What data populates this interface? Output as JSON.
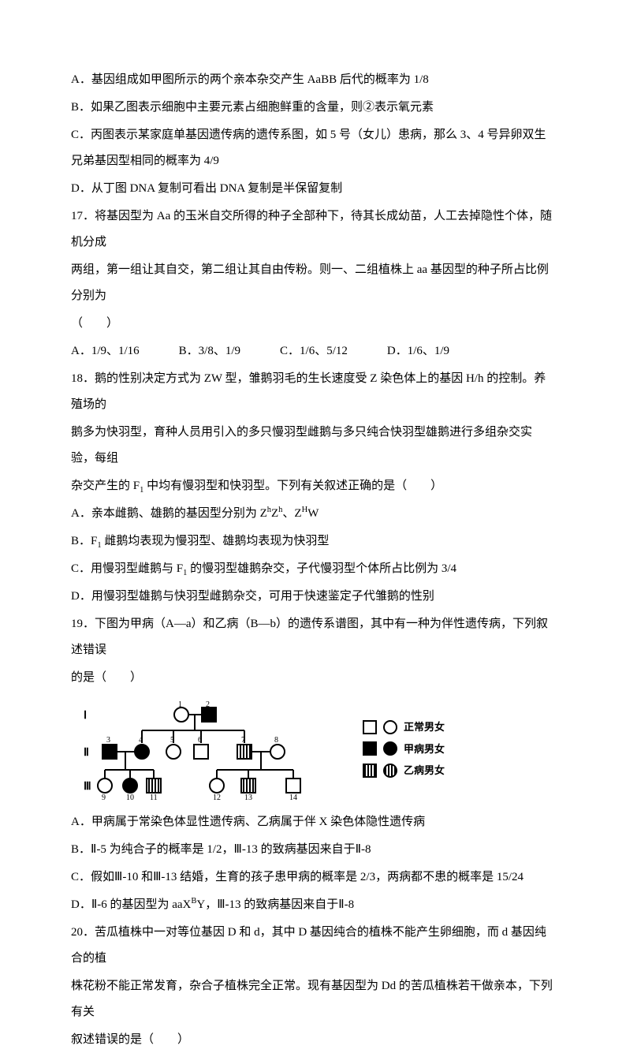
{
  "q16": {
    "opt_a": "A．基因组成如甲图所示的两个亲本杂交产生 AaBB 后代的概率为 1/8",
    "opt_b": "B．如果乙图表示细胞中主要元素占细胞鲜重的含量，则②表示氧元素",
    "opt_c": "C．丙图表示某家庭单基因遗传病的遗传系图，如 5 号（女儿）患病，那么 3、4 号异卵双生兄弟基因型相同的概率为 4/9",
    "opt_d": "D．从丁图 DNA 复制可看出 DNA 复制是半保留复制"
  },
  "q17": {
    "stem1": "17．将基因型为 Aa 的玉米自交所得的种子全部种下，待其长成幼苗，人工去掉隐性个体，随机分成",
    "stem2": "两组，第一组让其自交，第二组让其自由传粉。则一、二组植株上 aa 基因型的种子所占比例分别为",
    "stem3": "（　　）",
    "opt_a": "A．1/9、1/16",
    "opt_b": "B．3/8、1/9",
    "opt_c": "C．1/6、5/12",
    "opt_d": "D．1/6、1/9"
  },
  "q18": {
    "stem1": "18．鹅的性别决定方式为 ZW 型，雏鹅羽毛的生长速度受 Z 染色体上的基因 H/h 的控制。养殖场的",
    "stem2": "鹅多为快羽型，育种人员用引入的多只慢羽型雌鹅与多只纯合快羽型雄鹅进行多组杂交实验，每组",
    "stem3_html": "杂交产生的 F<sub>1</sub> 中均有慢羽型和快羽型。下列有关叙述正确的是（　　）",
    "opt_a_html": "A．亲本雌鹅、雄鹅的基因型分别为 Z<sup>h</sup>Z<sup>h</sup>、Z<sup>H</sup>W",
    "opt_b_html": "B．F<sub>1</sub> 雌鹅均表现为慢羽型、雄鹅均表现为快羽型",
    "opt_c_html": "C．用慢羽型雌鹅与 F<sub>1</sub> 的慢羽型雄鹅杂交，子代慢羽型个体所占比例为 3/4",
    "opt_d": "D．用慢羽型雄鹅与快羽型雌鹅杂交，可用于快速鉴定子代雏鹅的性别"
  },
  "q19": {
    "stem1": "19．下图为甲病（A—a）和乙病（B—b）的遗传系谱图，其中有一种为伴性遗传病，下列叙述错误",
    "stem2": "的是（　　）",
    "legend": {
      "normal": "正常男女",
      "diseaseA": "甲病男女",
      "diseaseB": "乙病男女"
    },
    "opt_a": "A．甲病属于常染色体显性遗传病、乙病属于伴 X 染色体隐性遗传病",
    "opt_b": "B．Ⅱ-5 为纯合子的概率是 1/2，Ⅲ-13 的致病基因来自于Ⅱ-8",
    "opt_c": "C．假如Ⅲ-10 和Ⅲ-13 结婚，生育的孩子患甲病的概率是 2/3，两病都不患的概率是 15/24",
    "opt_d_html": "D．Ⅱ-6 的基因型为 aaX<sup>B</sup>Y，Ⅲ-13 的致病基因来自于Ⅱ-8"
  },
  "q20": {
    "stem1": "20．苦瓜植株中一对等位基因 D 和 d，其中 D 基因纯合的植株不能产生卵细胞，而 d 基因纯合的植",
    "stem2": "株花粉不能正常发育，杂合子植株完全正常。现有基因型为 Dd 的苦瓜植株若干做亲本，下列有关",
    "stem3": "叙述错误的是（　　）"
  },
  "pedigree": {
    "gen_labels": [
      "Ⅰ",
      "Ⅱ",
      "Ⅲ"
    ],
    "node_numbers": [
      "1",
      "2",
      "3",
      "4",
      "5",
      "6",
      "7",
      "8",
      "9",
      "10",
      "11",
      "12",
      "13",
      "14"
    ]
  }
}
